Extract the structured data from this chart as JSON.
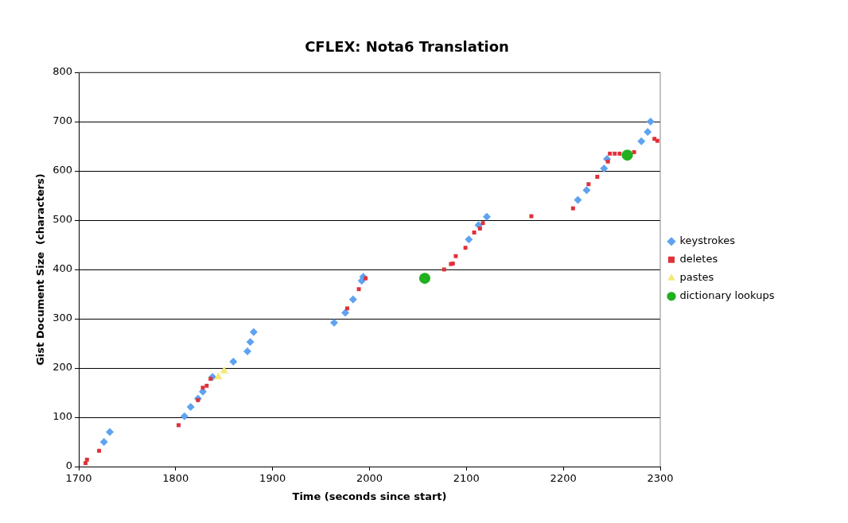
{
  "chart_data": {
    "type": "scatter",
    "title": "CFLEX: Nota6 Translation",
    "xlabel": "Time (seconds since start)",
    "ylabel": "Gist Document Size  (characters)",
    "xlim": [
      1700,
      2300
    ],
    "xticks": [
      1700,
      1800,
      1900,
      2000,
      2100,
      2200,
      2300
    ],
    "ylim": [
      0,
      800
    ],
    "yticks": [
      0,
      100,
      200,
      300,
      400,
      500,
      600,
      700,
      800
    ],
    "grid": "y",
    "legend": "right",
    "series": [
      {
        "name": "keystrokes",
        "color": "#5fa3f0",
        "marker": "diamond",
        "x": [
          1726,
          1732,
          1809,
          1815.5,
          1823,
          1828,
          1838,
          1859.5,
          1874,
          1877,
          1880.5,
          1963.5,
          1975,
          1983,
          1992,
          1993.5,
          2102.5,
          2112.5,
          2121,
          2215,
          2224,
          2242,
          2245,
          2280.5,
          2287,
          2290
        ],
        "values": [
          50,
          70,
          102,
          121,
          138,
          152,
          182,
          213,
          234,
          253,
          273,
          292,
          312,
          339,
          377,
          385,
          461,
          490,
          507,
          541,
          561,
          605,
          624,
          660,
          679,
          700
        ]
      },
      {
        "name": "deletes",
        "color": "#e0303a",
        "marker": "square",
        "x": [
          1707,
          1708.5,
          1721,
          1803,
          1823,
          1828,
          1832,
          1836,
          1977,
          1989,
          1996,
          2077,
          2084,
          2086,
          2089,
          2099,
          2108,
          2114,
          2117,
          2167,
          2210,
          2226,
          2235,
          2246,
          2248,
          2253,
          2258,
          2273,
          2294,
          2297
        ],
        "values": [
          7,
          14,
          32,
          84,
          135,
          160,
          164,
          178,
          321,
          360,
          382,
          400,
          411,
          412,
          427,
          444,
          475,
          483,
          494,
          508,
          524,
          573,
          588,
          619,
          635,
          635,
          635,
          638,
          665,
          661
        ]
      },
      {
        "name": "pastes",
        "color": "#f5e77a",
        "marker": "triangle",
        "x": [
          1844,
          1850
        ],
        "values": [
          182,
          194
        ]
      },
      {
        "name": "dictionary lookups",
        "color": "#20b020",
        "marker": "circle",
        "x": [
          2057,
          2266
        ],
        "values": [
          382,
          632
        ]
      }
    ]
  }
}
